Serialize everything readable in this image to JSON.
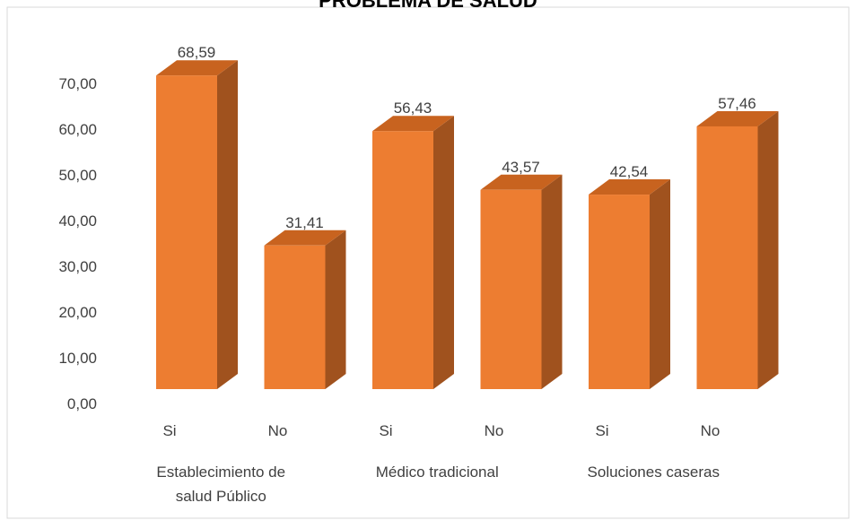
{
  "chart_data": {
    "type": "bar",
    "title": "PROBLEMA DE SALUD",
    "groups": [
      {
        "label_lines": [
          "Establecimiento de",
          "salud Público"
        ],
        "categories": [
          "Si",
          "No"
        ]
      },
      {
        "label_lines": [
          "Médico tradicional"
        ],
        "categories": [
          "Si",
          "No"
        ]
      },
      {
        "label_lines": [
          "Soluciones caseras"
        ],
        "categories": [
          "Si",
          "No"
        ]
      }
    ],
    "categories": [
      "Si",
      "No",
      "Si",
      "No",
      "Si",
      "No"
    ],
    "values": [
      68.59,
      31.41,
      56.43,
      43.57,
      42.54,
      57.46
    ],
    "value_labels": [
      "68,59",
      "31,41",
      "56,43",
      "43,57",
      "42,54",
      "57,46"
    ],
    "y_ticks": [
      "0,00",
      "10,00",
      "20,00",
      "30,00",
      "40,00",
      "50,00",
      "60,00",
      "70,00"
    ],
    "ylim": [
      0,
      70
    ],
    "grid": false,
    "legend": "none",
    "colors": {
      "bar_front": "#ED7D31",
      "bar_side": "#A0521E",
      "bar_top": "#C8631F",
      "axis_text": "#404040",
      "border": "#D9D9D9"
    }
  }
}
